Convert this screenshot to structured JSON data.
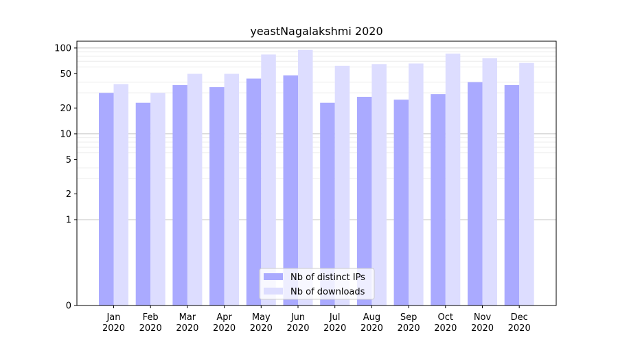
{
  "chart_data": {
    "type": "bar",
    "title": "yeastNagalakshmi 2020",
    "xlabel": "",
    "ylabel": "",
    "y_scale": "symlog",
    "y_ticks": [
      0,
      1,
      2,
      5,
      10,
      20,
      50,
      100
    ],
    "ylim": [
      0,
      120
    ],
    "grid": "horizontal, major and minor",
    "legend_position": "bottom-center",
    "categories": [
      [
        "Jan",
        "2020"
      ],
      [
        "Feb",
        "2020"
      ],
      [
        "Mar",
        "2020"
      ],
      [
        "Apr",
        "2020"
      ],
      [
        "May",
        "2020"
      ],
      [
        "Jun",
        "2020"
      ],
      [
        "Jul",
        "2020"
      ],
      [
        "Aug",
        "2020"
      ],
      [
        "Sep",
        "2020"
      ],
      [
        "Oct",
        "2020"
      ],
      [
        "Nov",
        "2020"
      ],
      [
        "Dec",
        "2020"
      ]
    ],
    "series": [
      {
        "name": "Nb of distinct IPs",
        "color": "#aaaaff",
        "values": [
          30,
          23,
          37,
          35,
          44,
          48,
          23,
          27,
          25,
          29,
          40,
          37
        ]
      },
      {
        "name": "Nb of downloads",
        "color": "#ddddff",
        "values": [
          38,
          30,
          50,
          50,
          84,
          95,
          62,
          65,
          66,
          86,
          76,
          67
        ]
      }
    ]
  }
}
